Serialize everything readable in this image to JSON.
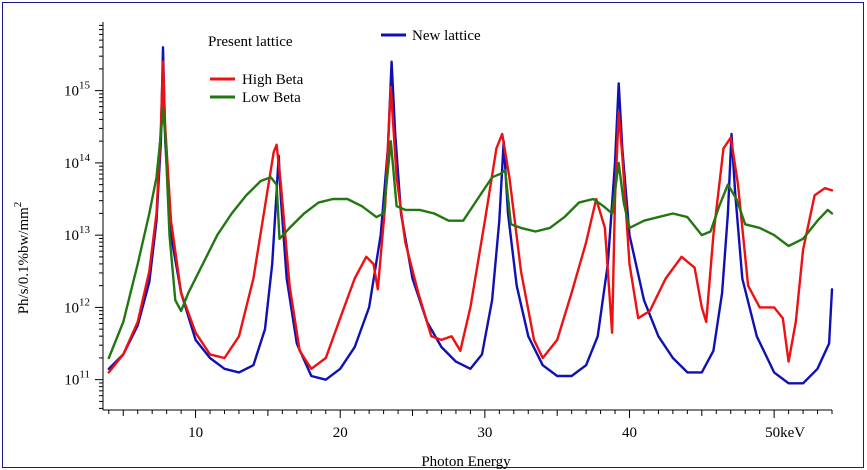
{
  "chart_data": {
    "type": "line",
    "xlabel": "Photon Energy",
    "ylabel": "Ph/s/0.1%bw/mm",
    "ylabel_sup": "2",
    "x_ticks": [
      {
        "value": 10,
        "label": "10"
      },
      {
        "value": 20,
        "label": "20"
      },
      {
        "value": 30,
        "label": "30"
      },
      {
        "value": 40,
        "label": "40"
      },
      {
        "value": 50,
        "label": "50keV"
      }
    ],
    "y_ticks": [
      {
        "exp": 11,
        "base": "10",
        "sup": "11"
      },
      {
        "exp": 12,
        "base": "10",
        "sup": "12"
      },
      {
        "exp": 13,
        "base": "10",
        "sup": "13"
      },
      {
        "exp": 14,
        "base": "10",
        "sup": "14"
      },
      {
        "exp": 15,
        "base": "10",
        "sup": "15"
      }
    ],
    "xlim": [
      3.6,
      54
    ],
    "ylim_log10": [
      10.58,
      15.95
    ],
    "y_scale": "log",
    "legend": {
      "header": "Present lattice",
      "placement": "top-left",
      "top_entry": "New lattice"
    },
    "series": [
      {
        "name": "New lattice",
        "color": "#1010b4",
        "points": [
          [
            4.0,
            11.15
          ],
          [
            5.0,
            11.35
          ],
          [
            6.0,
            11.75
          ],
          [
            6.8,
            12.35
          ],
          [
            7.3,
            13.2
          ],
          [
            7.6,
            14.3
          ],
          [
            7.75,
            15.6
          ],
          [
            7.9,
            14.3
          ],
          [
            8.3,
            13.0
          ],
          [
            9.0,
            12.2
          ],
          [
            10.0,
            11.55
          ],
          [
            11.0,
            11.3
          ],
          [
            12.0,
            11.15
          ],
          [
            13.0,
            11.1
          ],
          [
            14.0,
            11.2
          ],
          [
            14.8,
            11.7
          ],
          [
            15.3,
            12.6
          ],
          [
            15.6,
            13.6
          ],
          [
            15.75,
            14.1
          ],
          [
            15.9,
            13.5
          ],
          [
            16.3,
            12.4
          ],
          [
            17.0,
            11.5
          ],
          [
            18.0,
            11.05
          ],
          [
            19.0,
            11.0
          ],
          [
            20.0,
            11.15
          ],
          [
            21.0,
            11.45
          ],
          [
            22.0,
            12.0
          ],
          [
            22.8,
            13.0
          ],
          [
            23.3,
            14.2
          ],
          [
            23.55,
            15.4
          ],
          [
            23.8,
            14.4
          ],
          [
            24.2,
            13.3
          ],
          [
            25.0,
            12.4
          ],
          [
            26.0,
            11.8
          ],
          [
            27.0,
            11.45
          ],
          [
            28.0,
            11.25
          ],
          [
            29.0,
            11.15
          ],
          [
            29.8,
            11.35
          ],
          [
            30.5,
            12.1
          ],
          [
            31.0,
            13.2
          ],
          [
            31.3,
            14.3
          ],
          [
            31.6,
            13.3
          ],
          [
            32.2,
            12.3
          ],
          [
            33.0,
            11.6
          ],
          [
            34.0,
            11.2
          ],
          [
            35.0,
            11.05
          ],
          [
            36.0,
            11.05
          ],
          [
            37.0,
            11.2
          ],
          [
            37.8,
            11.6
          ],
          [
            38.5,
            12.6
          ],
          [
            39.0,
            14.0
          ],
          [
            39.25,
            15.1
          ],
          [
            39.5,
            14.2
          ],
          [
            40.0,
            13.0
          ],
          [
            41.0,
            12.1
          ],
          [
            42.0,
            11.6
          ],
          [
            43.0,
            11.3
          ],
          [
            44.0,
            11.1
          ],
          [
            45.0,
            11.1
          ],
          [
            45.8,
            11.4
          ],
          [
            46.4,
            12.2
          ],
          [
            46.8,
            13.3
          ],
          [
            47.05,
            14.4
          ],
          [
            47.3,
            13.6
          ],
          [
            47.8,
            12.4
          ],
          [
            48.8,
            11.6
          ],
          [
            50.0,
            11.1
          ],
          [
            51.0,
            10.95
          ],
          [
            52.0,
            10.95
          ],
          [
            53.0,
            11.15
          ],
          [
            53.8,
            11.5
          ],
          [
            54.0,
            12.25
          ]
        ]
      },
      {
        "name": "High Beta",
        "color": "#ee1111",
        "points": [
          [
            4.0,
            11.1
          ],
          [
            5.0,
            11.35
          ],
          [
            6.0,
            11.8
          ],
          [
            6.8,
            12.5
          ],
          [
            7.3,
            13.3
          ],
          [
            7.6,
            14.5
          ],
          [
            7.75,
            15.4
          ],
          [
            7.9,
            14.5
          ],
          [
            8.3,
            13.2
          ],
          [
            9.0,
            12.2
          ],
          [
            10.0,
            11.65
          ],
          [
            11.0,
            11.35
          ],
          [
            12.0,
            11.3
          ],
          [
            13.0,
            11.6
          ],
          [
            14.0,
            12.4
          ],
          [
            14.8,
            13.4
          ],
          [
            15.4,
            14.15
          ],
          [
            15.6,
            14.25
          ],
          [
            15.9,
            13.7
          ],
          [
            16.5,
            12.3
          ],
          [
            17.2,
            11.4
          ],
          [
            18.0,
            11.15
          ],
          [
            19.0,
            11.3
          ],
          [
            20.0,
            11.85
          ],
          [
            21.0,
            12.4
          ],
          [
            21.8,
            12.7
          ],
          [
            22.3,
            12.6
          ],
          [
            22.6,
            12.25
          ],
          [
            23.1,
            13.4
          ],
          [
            23.5,
            15.05
          ],
          [
            23.9,
            13.8
          ],
          [
            24.5,
            12.9
          ],
          [
            25.4,
            12.2
          ],
          [
            26.3,
            11.6
          ],
          [
            27.0,
            11.55
          ],
          [
            27.7,
            11.6
          ],
          [
            28.3,
            11.4
          ],
          [
            29.0,
            12.0
          ],
          [
            30.0,
            13.2
          ],
          [
            30.8,
            14.2
          ],
          [
            31.2,
            14.4
          ],
          [
            31.7,
            13.8
          ],
          [
            32.5,
            12.5
          ],
          [
            33.4,
            11.55
          ],
          [
            34.0,
            11.3
          ],
          [
            35.0,
            11.55
          ],
          [
            36.0,
            12.2
          ],
          [
            37.0,
            12.9
          ],
          [
            37.7,
            13.5
          ],
          [
            38.3,
            13.1
          ],
          [
            38.8,
            11.65
          ],
          [
            39.0,
            13.5
          ],
          [
            39.25,
            14.7
          ],
          [
            39.5,
            14.1
          ],
          [
            40.0,
            12.6
          ],
          [
            40.6,
            11.85
          ],
          [
            41.4,
            11.95
          ],
          [
            42.5,
            12.4
          ],
          [
            43.6,
            12.7
          ],
          [
            44.5,
            12.55
          ],
          [
            45.0,
            12.0
          ],
          [
            45.3,
            11.8
          ],
          [
            45.8,
            13.0
          ],
          [
            46.5,
            14.2
          ],
          [
            47.0,
            14.35
          ],
          [
            47.5,
            13.7
          ],
          [
            48.2,
            12.3
          ],
          [
            49.0,
            12.0
          ],
          [
            50.0,
            12.0
          ],
          [
            50.6,
            11.85
          ],
          [
            51.0,
            11.25
          ],
          [
            51.5,
            11.8
          ],
          [
            52.0,
            12.8
          ],
          [
            52.8,
            13.55
          ],
          [
            53.5,
            13.65
          ],
          [
            54.0,
            13.62
          ]
        ]
      },
      {
        "name": "Low Beta",
        "color": "#227711",
        "points": [
          [
            4.0,
            11.3
          ],
          [
            5.0,
            11.8
          ],
          [
            6.0,
            12.6
          ],
          [
            6.8,
            13.3
          ],
          [
            7.3,
            13.8
          ],
          [
            7.6,
            14.4
          ],
          [
            7.75,
            14.75
          ],
          [
            7.9,
            14.4
          ],
          [
            8.2,
            13.0
          ],
          [
            8.6,
            12.1
          ],
          [
            9.0,
            11.95
          ],
          [
            9.5,
            12.2
          ],
          [
            10.5,
            12.6
          ],
          [
            11.5,
            13.0
          ],
          [
            12.5,
            13.3
          ],
          [
            13.5,
            13.55
          ],
          [
            14.5,
            13.75
          ],
          [
            15.2,
            13.8
          ],
          [
            15.6,
            13.7
          ],
          [
            15.8,
            12.95
          ],
          [
            16.5,
            13.1
          ],
          [
            17.5,
            13.3
          ],
          [
            18.5,
            13.45
          ],
          [
            19.5,
            13.5
          ],
          [
            20.5,
            13.5
          ],
          [
            21.5,
            13.4
          ],
          [
            22.5,
            13.25
          ],
          [
            23.0,
            13.3
          ],
          [
            23.5,
            14.3
          ],
          [
            23.9,
            13.4
          ],
          [
            24.5,
            13.35
          ],
          [
            25.5,
            13.35
          ],
          [
            26.5,
            13.3
          ],
          [
            27.5,
            13.2
          ],
          [
            28.5,
            13.2
          ],
          [
            29.5,
            13.5
          ],
          [
            30.5,
            13.8
          ],
          [
            31.1,
            13.85
          ],
          [
            31.4,
            13.9
          ],
          [
            31.8,
            13.15
          ],
          [
            32.5,
            13.1
          ],
          [
            33.5,
            13.05
          ],
          [
            34.5,
            13.1
          ],
          [
            35.5,
            13.25
          ],
          [
            36.5,
            13.45
          ],
          [
            37.5,
            13.5
          ],
          [
            38.2,
            13.4
          ],
          [
            38.8,
            13.3
          ],
          [
            39.25,
            14.0
          ],
          [
            39.6,
            13.45
          ],
          [
            40.0,
            13.1
          ],
          [
            41.0,
            13.2
          ],
          [
            42.0,
            13.25
          ],
          [
            43.0,
            13.3
          ],
          [
            44.0,
            13.25
          ],
          [
            45.0,
            13.0
          ],
          [
            45.6,
            13.05
          ],
          [
            46.2,
            13.4
          ],
          [
            46.8,
            13.7
          ],
          [
            47.4,
            13.5
          ],
          [
            48.0,
            13.15
          ],
          [
            49.0,
            13.1
          ],
          [
            50.0,
            13.0
          ],
          [
            51.0,
            12.85
          ],
          [
            52.0,
            12.95
          ],
          [
            53.0,
            13.2
          ],
          [
            53.7,
            13.35
          ],
          [
            54.0,
            13.3
          ]
        ]
      }
    ]
  }
}
